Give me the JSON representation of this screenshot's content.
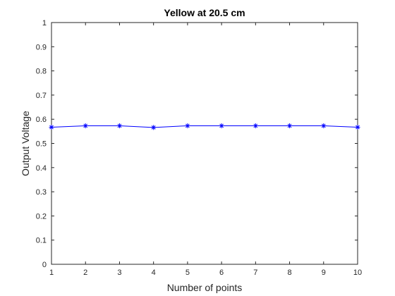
{
  "chart_data": {
    "type": "line",
    "title": "Yellow at 20.5 cm",
    "xlabel": "Number of points",
    "ylabel": "Output Voltage",
    "x": [
      1,
      2,
      3,
      4,
      5,
      6,
      7,
      8,
      9,
      10
    ],
    "series": [
      {
        "values": [
          0.567,
          0.573,
          0.573,
          0.566,
          0.573,
          0.573,
          0.573,
          0.573,
          0.573,
          0.567
        ],
        "color": "#0000ff",
        "marker": "asterisk"
      }
    ],
    "xlim": [
      1,
      10
    ],
    "ylim": [
      0,
      1
    ],
    "xticks": [
      1,
      2,
      3,
      4,
      5,
      6,
      7,
      8,
      9,
      10
    ],
    "yticks": [
      0,
      0.1,
      0.2,
      0.3,
      0.4,
      0.5,
      0.6,
      0.7,
      0.8,
      0.9,
      1
    ],
    "grid": false,
    "box": true
  }
}
